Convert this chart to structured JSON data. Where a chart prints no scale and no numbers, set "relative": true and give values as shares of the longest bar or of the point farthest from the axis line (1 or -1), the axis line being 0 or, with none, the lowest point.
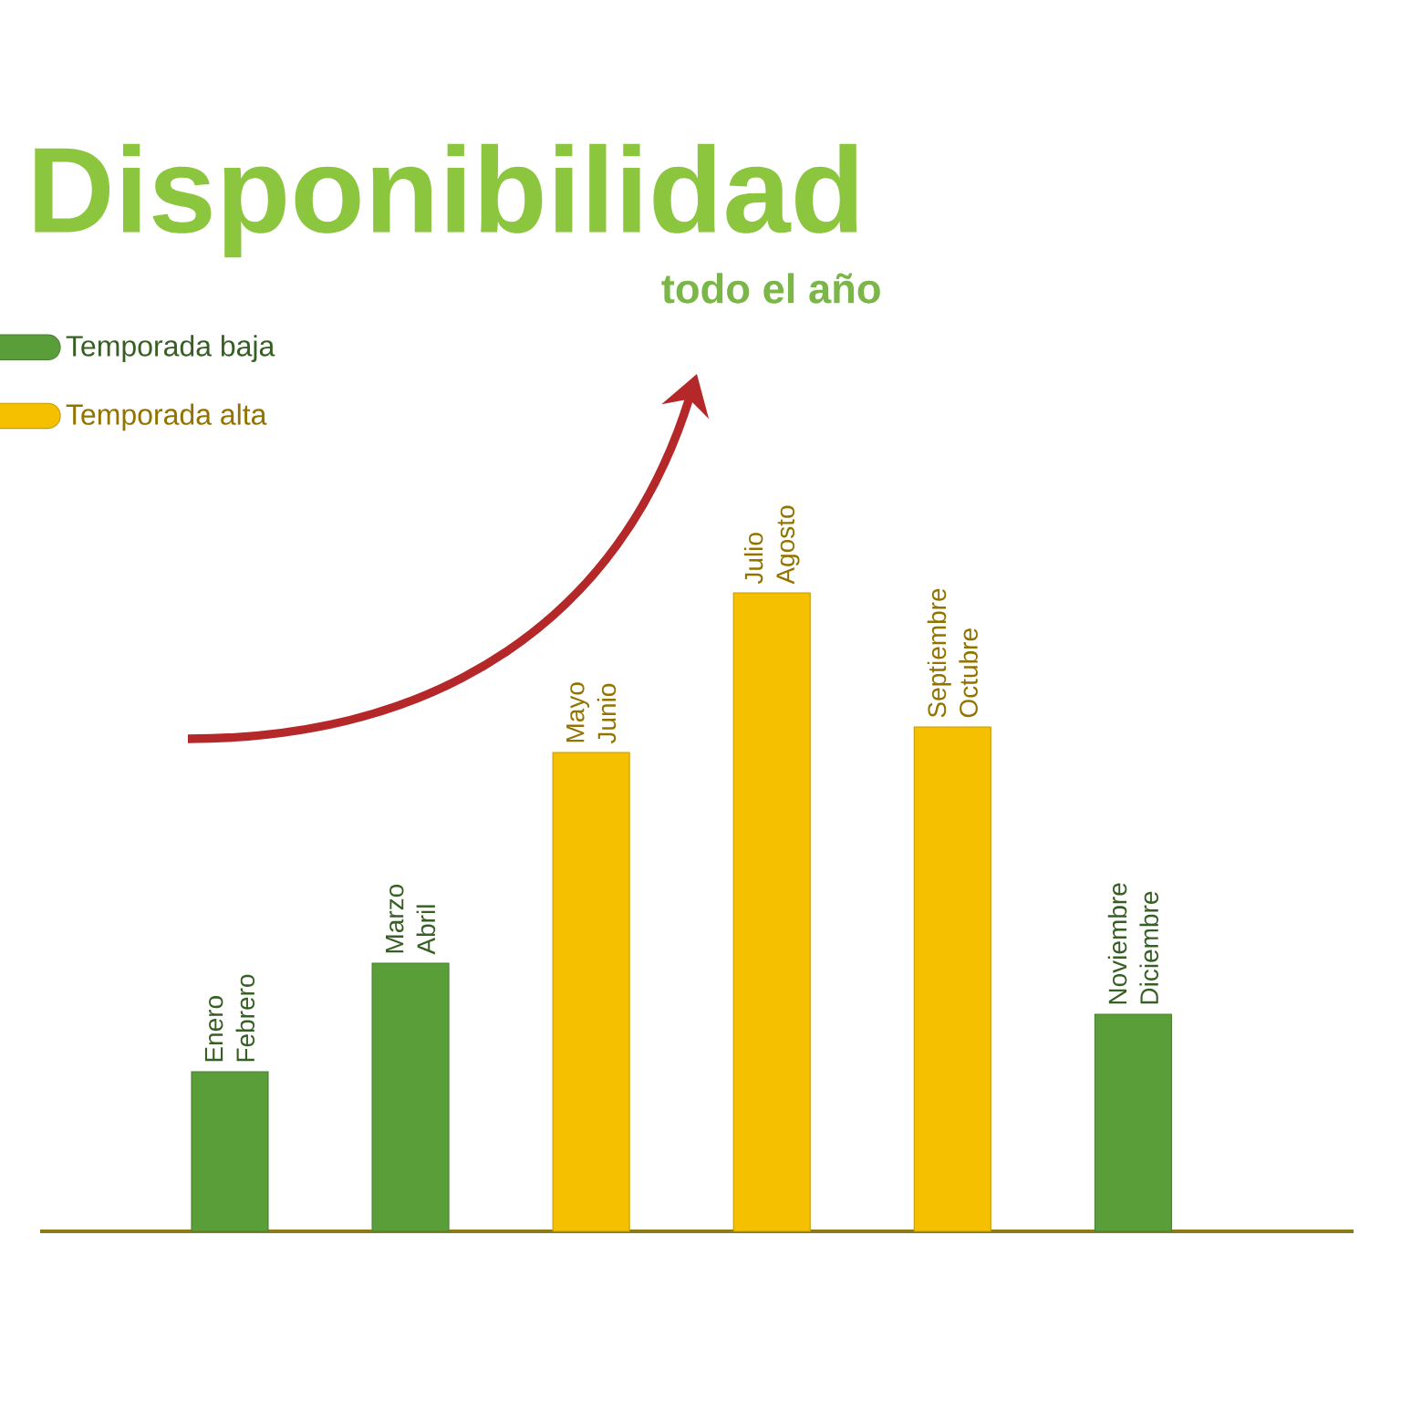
{
  "chart_data": {
    "type": "bar",
    "title": "Disponibilidad",
    "subtitle": "todo el año",
    "relative": true,
    "legend": "top left",
    "categories": [
      "Enero Febrero",
      "Marzo Abril",
      "Mayo Junio",
      "Julio Agosto",
      "Septiembre Octubre",
      "Noviembre Diciembre"
    ],
    "series": [
      {
        "name": "Temporada baja",
        "color": "#5a9e3a",
        "values": [
          0.25,
          0.42,
          null,
          null,
          null,
          0.34
        ]
      },
      {
        "name": "Temporada alta",
        "color": "#f5c000",
        "values": [
          null,
          null,
          0.75,
          1,
          0.79,
          null
        ]
      }
    ]
  }
}
